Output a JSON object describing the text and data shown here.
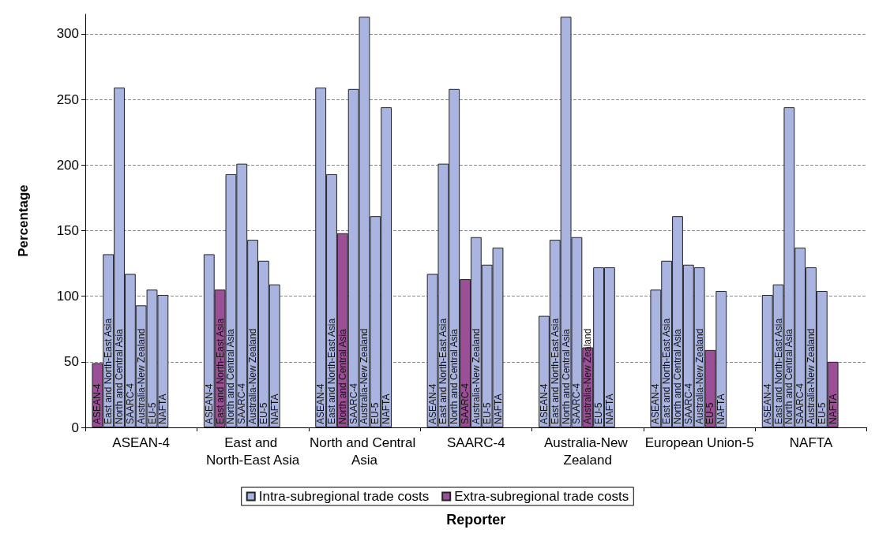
{
  "chart_data": {
    "type": "bar",
    "xlabel": "Reporter",
    "ylabel": "Percentage",
    "categories": [
      "ASEAN-4",
      "East and North-East Asia",
      "North and Central Asia",
      "SAARC-4",
      "Australia-New Zealand",
      "European Union-5",
      "NAFTA"
    ],
    "ylim": [
      0,
      315
    ],
    "yticks": [
      0,
      50,
      100,
      150,
      200,
      250,
      300
    ],
    "grid": "y",
    "legend": "bottom",
    "series": [
      {
        "name": "ASEAN-4",
        "values": [
          49,
          132,
          259,
          117,
          85,
          105,
          101
        ],
        "colors": [
          "#9b4f96",
          "#aab4e0",
          "#aab4e0",
          "#aab4e0",
          "#aab4e0",
          "#aab4e0",
          "#aab4e0"
        ]
      },
      {
        "name": "East and North-East Asia",
        "values": [
          132,
          105,
          193,
          201,
          143,
          127,
          109
        ],
        "colors": [
          "#aab4e0",
          "#9b4f96",
          "#aab4e0",
          "#aab4e0",
          "#aab4e0",
          "#aab4e0",
          "#aab4e0"
        ]
      },
      {
        "name": "North and Central Asia",
        "values": [
          259,
          193,
          148,
          258,
          313,
          161,
          244
        ],
        "colors": [
          "#aab4e0",
          "#aab4e0",
          "#9b4f96",
          "#aab4e0",
          "#aab4e0",
          "#aab4e0",
          "#aab4e0"
        ]
      },
      {
        "name": "SAARC-4",
        "values": [
          117,
          201,
          258,
          113,
          145,
          124,
          137
        ],
        "colors": [
          "#aab4e0",
          "#aab4e0",
          "#aab4e0",
          "#9b4f96",
          "#aab4e0",
          "#aab4e0",
          "#aab4e0"
        ]
      },
      {
        "name": "Australia-New Zealand",
        "values": [
          93,
          143,
          313,
          145,
          61,
          122,
          122
        ],
        "colors": [
          "#aab4e0",
          "#aab4e0",
          "#aab4e0",
          "#aab4e0",
          "#9b4f96",
          "#aab4e0",
          "#aab4e0"
        ]
      },
      {
        "name": "EU-5",
        "values": [
          105,
          127,
          161,
          124,
          122,
          59,
          104
        ],
        "colors": [
          "#aab4e0",
          "#aab4e0",
          "#aab4e0",
          "#aab4e0",
          "#aab4e0",
          "#9b4f96",
          "#aab4e0"
        ]
      },
      {
        "name": "NAFTA",
        "values": [
          101,
          109,
          244,
          137,
          122,
          104,
          50
        ],
        "colors": [
          "#aab4e0",
          "#aab4e0",
          "#aab4e0",
          "#aab4e0",
          "#aab4e0",
          "#aab4e0",
          "#9b4f96"
        ]
      },
      {
        "name": "Intra-subregional trade costs",
        "color": "#aab4e0",
        "values": [
          null,
          null,
          null,
          null,
          null,
          null,
          null
        ]
      },
      {
        "name": "Extra-subregional trade costs",
        "color": "#9b4f96",
        "values": [
          null,
          null,
          null,
          null,
          null,
          null,
          null
        ]
      }
    ]
  }
}
